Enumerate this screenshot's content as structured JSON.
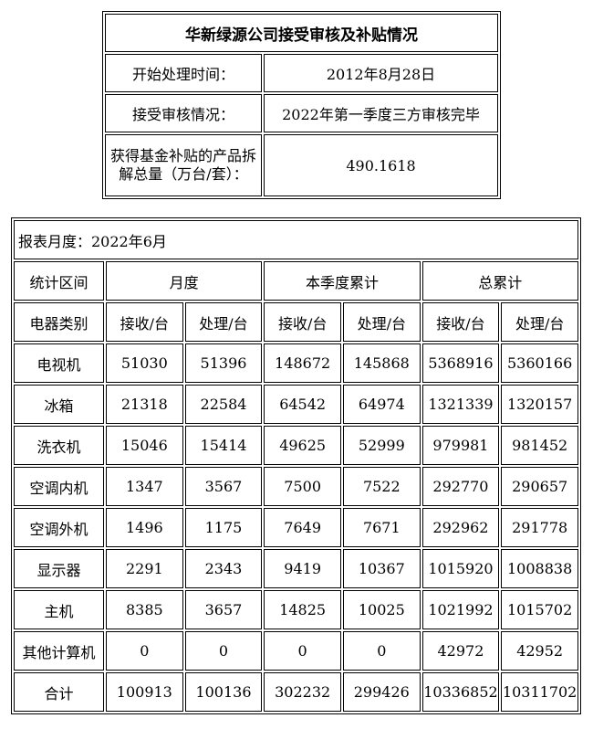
{
  "summary": {
    "title": "华新绿源公司接受审核及补贴情况",
    "rows": [
      {
        "label": "开始处理时间：",
        "value": "2012年8月28日"
      },
      {
        "label": "接受审核情况：",
        "value": "2022年第一季度三方审核完毕"
      },
      {
        "label": "获得基金补贴的产品拆解总量（万台/套）：",
        "value": "490.1618"
      }
    ]
  },
  "report": {
    "month_label": "报表月度：2022年6月",
    "period_header": "统计区间",
    "periods": [
      "月度",
      "本季度累计",
      "总累计"
    ],
    "category_header": "电器类别",
    "sub_headers": [
      "接收/台",
      "处理/台",
      "接收/台",
      "处理/台",
      "接收/台",
      "处理/台"
    ],
    "rows": [
      {
        "name": "电视机",
        "values": [
          "51030",
          "51396",
          "148672",
          "145868",
          "5368916",
          "5360166"
        ]
      },
      {
        "name": "冰箱",
        "values": [
          "21318",
          "22584",
          "64542",
          "64974",
          "1321339",
          "1320157"
        ]
      },
      {
        "name": "洗衣机",
        "values": [
          "15046",
          "15414",
          "49625",
          "52999",
          "979981",
          "981452"
        ]
      },
      {
        "name": "空调内机",
        "values": [
          "1347",
          "3567",
          "7500",
          "7522",
          "292770",
          "290657"
        ]
      },
      {
        "name": "空调外机",
        "values": [
          "1496",
          "1175",
          "7649",
          "7671",
          "292962",
          "291778"
        ]
      },
      {
        "name": "显示器",
        "values": [
          "2291",
          "2343",
          "9419",
          "10367",
          "1015920",
          "1008838"
        ]
      },
      {
        "name": "主机",
        "values": [
          "8385",
          "3657",
          "14825",
          "10025",
          "1021992",
          "1015702"
        ]
      },
      {
        "name": "其他计算机",
        "values": [
          "0",
          "0",
          "0",
          "0",
          "42972",
          "42952"
        ]
      },
      {
        "name": "合计",
        "values": [
          "100913",
          "100136",
          "302232",
          "299426",
          "10336852",
          "10311702"
        ]
      }
    ]
  }
}
